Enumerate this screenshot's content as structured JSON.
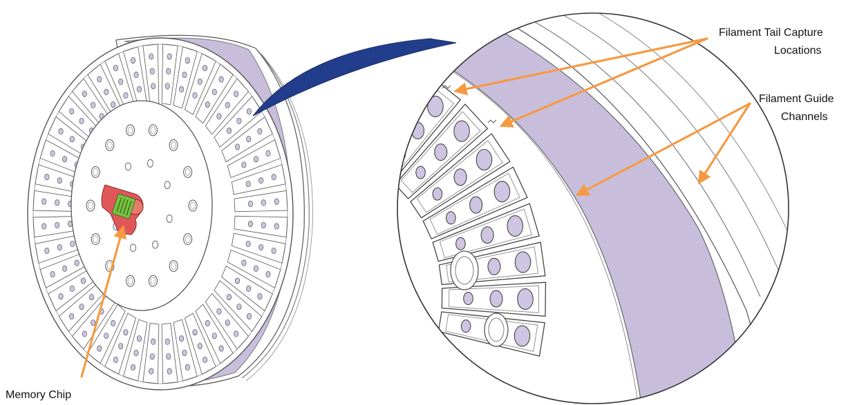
{
  "labels": {
    "memory_chip": "Memory Chip",
    "filament_tail_capture_line1": "Filament Tail Capture",
    "filament_tail_capture_line2": "Locations",
    "filament_guide_channels_line1": "Filament Guide",
    "filament_guide_channels_line2": "Channels"
  },
  "colors": {
    "spool_band": "#c8bedc",
    "slot_window": "#cfc4e2",
    "chip_body": "#e0575a",
    "chip_contacts": "#79c242",
    "zoom_connector": "#223d8c",
    "callout_arrow": "#f59a42",
    "outline": "#555555"
  }
}
